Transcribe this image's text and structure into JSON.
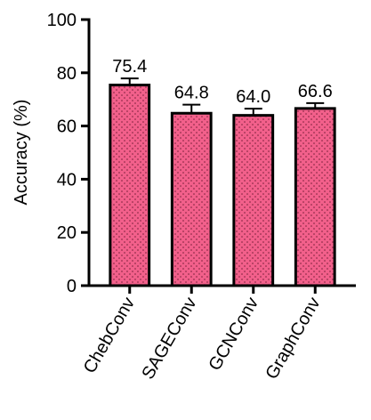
{
  "chart_data": {
    "type": "bar",
    "y_label": "Accuracy (%)",
    "categories": [
      "ChebConv",
      "SAGEConv",
      "GCNConv",
      "GraphConv"
    ],
    "values": [
      75.4,
      64.8,
      64.0,
      66.6
    ],
    "value_labels": [
      "75.4",
      "64.8",
      "64.0",
      "66.6"
    ],
    "errors": [
      2.5,
      3.2,
      2.5,
      2.0
    ],
    "color": "#f2608b",
    "ylim": [
      0,
      100
    ],
    "yticks": [
      0,
      20,
      40,
      60,
      80,
      100
    ]
  }
}
